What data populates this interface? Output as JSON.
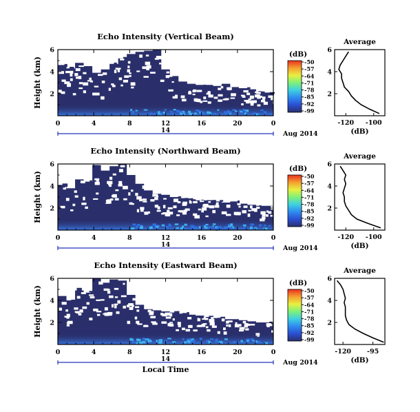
{
  "chart_data": [
    {
      "type": "heatmap",
      "title": "Echo Intensity (Vertical Beam)",
      "ylabel": "Height (km)",
      "xlabel": "",
      "x_range": [
        0,
        24
      ],
      "x_ticks": [
        "0",
        "4",
        "8",
        "12",
        "16",
        "20",
        "0"
      ],
      "y_range": [
        0,
        6
      ],
      "y_ticks": [
        "2",
        "4",
        "6"
      ],
      "date_label": "14",
      "date_suffix": "Aug 2014",
      "colorbar": {
        "unit": "(dB)",
        "ticks": [
          "-50",
          "-57",
          "-64",
          "-71",
          "-78",
          "-85",
          "-92",
          "-99"
        ]
      },
      "echo_top_km": [
        4.6,
        4.3,
        4.8,
        4.5,
        3.9,
        4.2,
        4.7,
        5.2,
        5.6,
        5.8,
        5.9,
        6.0,
        4.2,
        3.6,
        3.1,
        2.9,
        2.8,
        2.8,
        2.7,
        2.9,
        2.6,
        2.5,
        2.4,
        2.2,
        2.1
      ],
      "profile": {
        "title": "Average",
        "xlabel": "(dB)",
        "x_range": [
          -128,
          -92
        ],
        "x_ticks": [
          "-120",
          "-100"
        ],
        "y_range": [
          0,
          6
        ],
        "y_ticks": [
          "2",
          "4",
          "6"
        ],
        "height_km": [
          0.2,
          0.6,
          1.0,
          1.4,
          1.8,
          2.2,
          2.6,
          3.0,
          3.4,
          3.8,
          4.2,
          4.6,
          5.0,
          5.4,
          5.8
        ],
        "db": [
          -96,
          -103,
          -109,
          -113,
          -116,
          -118,
          -121,
          -122,
          -123,
          -123,
          -125,
          -124,
          -122,
          -120,
          -118
        ]
      }
    },
    {
      "type": "heatmap",
      "title": "Echo Intensity (Northward Beam)",
      "ylabel": "Height (km)",
      "xlabel": "",
      "x_range": [
        0,
        24
      ],
      "x_ticks": [
        "0",
        "4",
        "8",
        "12",
        "16",
        "20",
        "0"
      ],
      "y_range": [
        0,
        6
      ],
      "y_ticks": [
        "2",
        "4",
        "6"
      ],
      "date_label": "14",
      "date_suffix": "Aug 2014",
      "colorbar": {
        "unit": "(dB)",
        "ticks": [
          "-50",
          "-57",
          "-64",
          "-71",
          "-78",
          "-85",
          "-92",
          "-99"
        ]
      },
      "echo_top_km": [
        4.1,
        3.8,
        4.6,
        4.4,
        5.9,
        5.4,
        5.8,
        6.0,
        5.0,
        4.2,
        3.6,
        3.3,
        3.2,
        3.0,
        2.9,
        2.8,
        2.7,
        2.7,
        2.6,
        2.5,
        2.6,
        2.4,
        2.3,
        2.2,
        2.2
      ],
      "profile": {
        "title": "Average",
        "xlabel": "(dB)",
        "x_range": [
          -128,
          -92
        ],
        "x_ticks": [
          "-120",
          "-100"
        ],
        "y_range": [
          0,
          6
        ],
        "y_ticks": [
          "2",
          "4",
          "6"
        ],
        "height_km": [
          0.2,
          0.6,
          1.0,
          1.4,
          1.8,
          2.2,
          2.6,
          3.0,
          3.4,
          3.8,
          4.2,
          4.6,
          5.0,
          5.4,
          5.8
        ],
        "db": [
          -95,
          -104,
          -112,
          -116,
          -118,
          -120,
          -121,
          -121,
          -122,
          -121,
          -120,
          -121,
          -120,
          -122,
          -124
        ]
      }
    },
    {
      "type": "heatmap",
      "title": "Echo Intensity (Eastward Beam)",
      "ylabel": "Height (km)",
      "xlabel": "Local Time",
      "x_range": [
        0,
        24
      ],
      "x_ticks": [
        "0",
        "4",
        "8",
        "12",
        "16",
        "20",
        "0"
      ],
      "y_range": [
        0,
        6
      ],
      "y_ticks": [
        "2",
        "4",
        "6"
      ],
      "date_label": "14",
      "date_suffix": "Aug 2014",
      "colorbar": {
        "unit": "(dB)",
        "ticks": [
          "-50",
          "-57",
          "-64",
          "-71",
          "-78",
          "-85",
          "-92",
          "-99"
        ]
      },
      "echo_top_km": [
        4.4,
        4.0,
        4.9,
        4.7,
        6.0,
        5.6,
        5.9,
        5.8,
        4.5,
        3.6,
        3.2,
        3.1,
        3.0,
        2.9,
        2.8,
        2.7,
        2.6,
        2.5,
        2.4,
        2.3,
        2.3,
        2.2,
        2.1,
        2.0,
        2.0
      ],
      "profile": {
        "title": "Average",
        "xlabel": "(dB)",
        "x_range": [
          -127,
          -85
        ],
        "x_ticks": [
          "-120",
          "-95"
        ],
        "y_range": [
          0,
          6
        ],
        "y_ticks": [
          "2",
          "4",
          "6"
        ],
        "height_km": [
          0.2,
          0.6,
          1.0,
          1.4,
          1.8,
          2.2,
          2.6,
          3.0,
          3.4,
          3.8,
          4.2,
          4.6,
          5.0,
          5.4,
          5.8
        ],
        "db": [
          -86,
          -95,
          -103,
          -110,
          -115,
          -117,
          -118,
          -118,
          -118,
          -119,
          -118,
          -119,
          -120,
          -122,
          -125
        ]
      }
    }
  ],
  "colors": {
    "background_echo": "#2a2f6b",
    "axis_blue": "#2233bb",
    "colorbar_stops": [
      "#2a2f6b",
      "#2b4fd1",
      "#2f8bf0",
      "#3fd0e0",
      "#7ef07a",
      "#e8f040",
      "#f5a030",
      "#e83020"
    ]
  }
}
